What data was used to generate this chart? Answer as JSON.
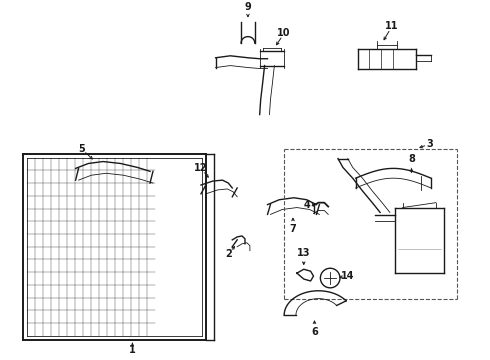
{
  "bg_color": "#ffffff",
  "line_color": "#1a1a1a",
  "figsize": [
    4.9,
    3.6
  ],
  "dpi": 100,
  "lw_main": 1.0,
  "lw_thin": 0.6,
  "lw_thick": 1.4,
  "arrow_ms": 4.5,
  "font_size": 7.0
}
